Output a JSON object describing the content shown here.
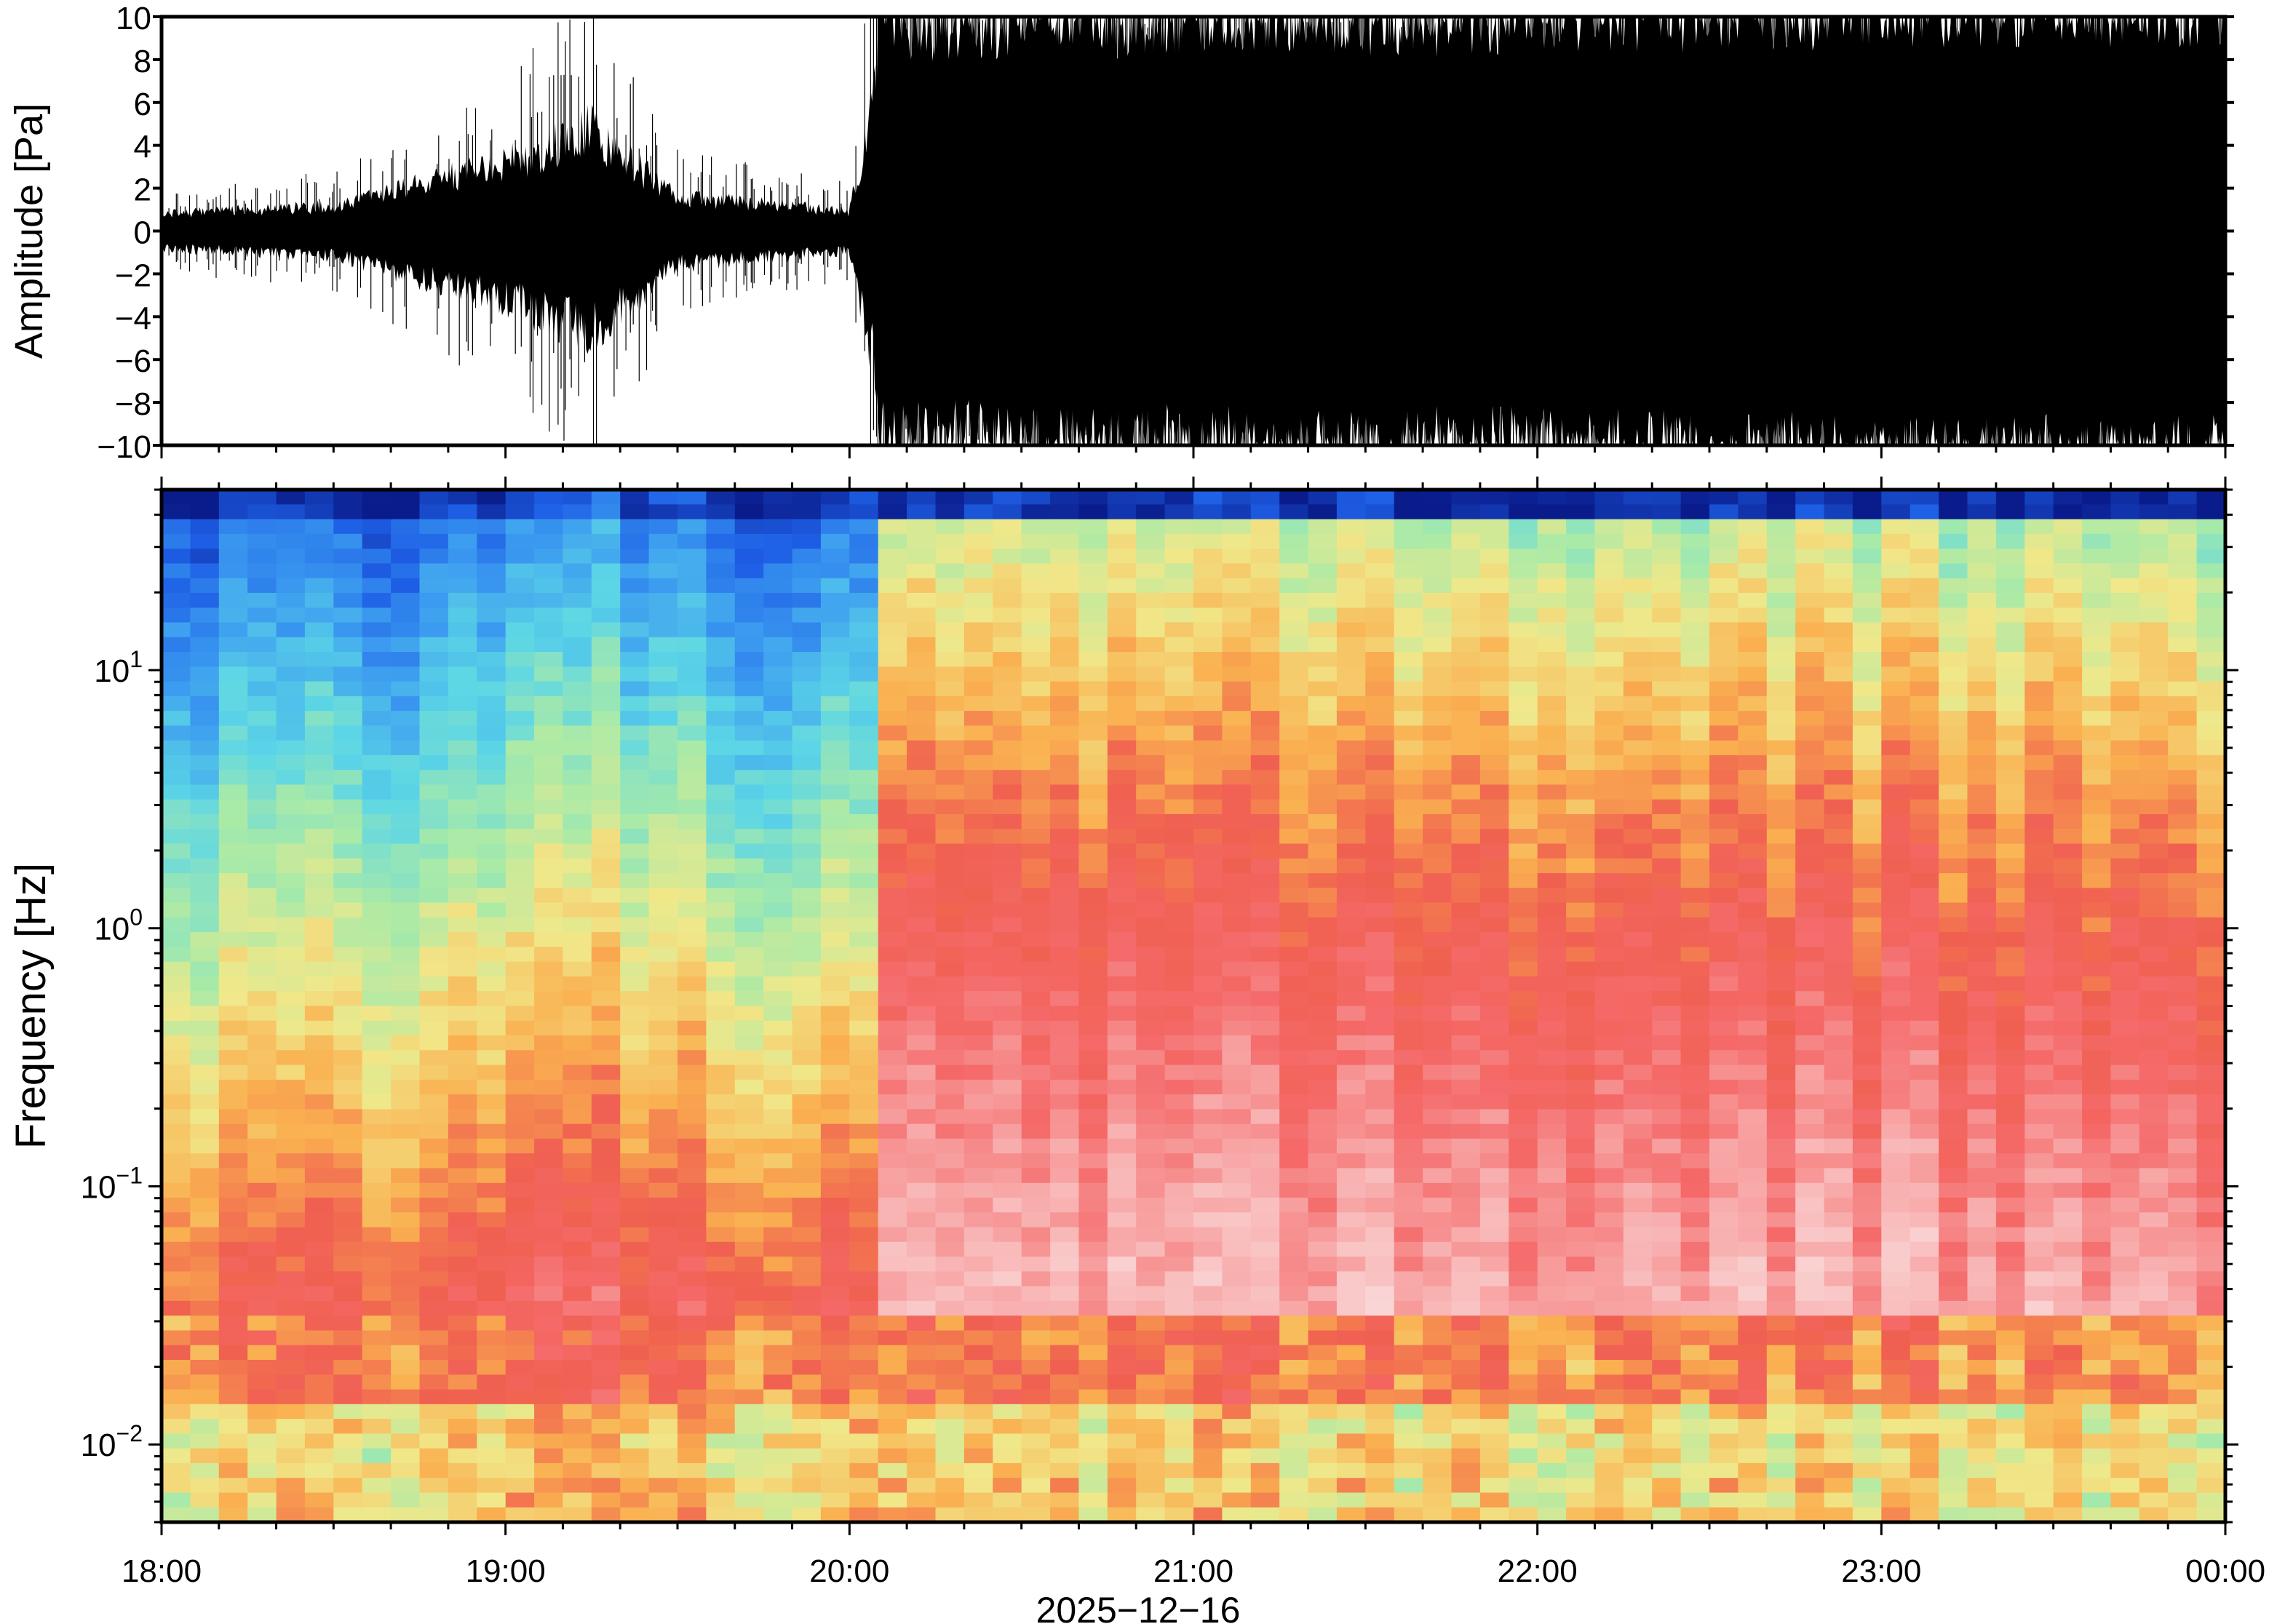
{
  "figure": {
    "waveform_ylabel": "Amplitude [Pa]",
    "spectrogram_ylabel": "Frequency [Hz]",
    "date_label": "2025−12−16",
    "colormap": [
      "#0a1c8c",
      "#1e5fe6",
      "#3c9cf0",
      "#5cd6e6",
      "#a8eaa8",
      "#f0e88a",
      "#fab050",
      "#f06050",
      "#f56a6a",
      "#f8aaaa",
      "#fadcdc"
    ]
  },
  "chart_data": [
    {
      "type": "line",
      "ylabel": "Amplitude [Pa]",
      "ylim": [
        -10,
        10
      ],
      "xlim": [
        "18:00",
        "00:00"
      ],
      "yticks": [
        "10",
        "8",
        "6",
        "4",
        "2",
        "0",
        "−2",
        "−4",
        "−6",
        "−8",
        "−10"
      ],
      "envelope": {
        "x": [
          "18:00",
          "18:30",
          "19:00",
          "19:15",
          "19:30",
          "20:00",
          "20:05",
          "21:00",
          "22:00",
          "23:00",
          "00:00"
        ],
        "amplitude": [
          1.0,
          1.5,
          4.0,
          6.0,
          2.0,
          1.2,
          9.0,
          9.5,
          9.5,
          10,
          10
        ]
      }
    },
    {
      "type": "heatmap",
      "ylabel": "Frequency [Hz]",
      "yscale": "log",
      "ylim": [
        0.005,
        50
      ],
      "yticks": [
        {
          "base": "10",
          "exp": "−2",
          "value": 0.01
        },
        {
          "base": "10",
          "exp": "−1",
          "value": 0.1
        },
        {
          "base": "10",
          "exp": "0",
          "value": 1
        },
        {
          "base": "10",
          "exp": "1",
          "value": 10
        }
      ],
      "xticks": [
        "18:00",
        "19:00",
        "20:00",
        "21:00",
        "22:00",
        "23:00",
        "00:00"
      ],
      "xlabel": "2025−12−16",
      "regime_change": "20:05"
    }
  ]
}
